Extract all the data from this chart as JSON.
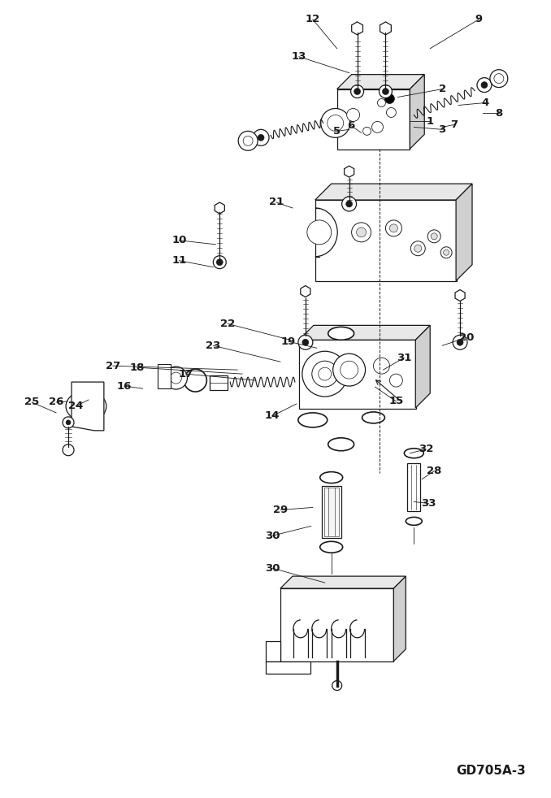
{
  "bg_color": "#ffffff",
  "line_color": "#1a1a1a",
  "text_color": "#1a1a1a",
  "watermark": "GD705A-3",
  "fig_width": 6.78,
  "fig_height": 9.82,
  "dpi": 100,
  "lw": 0.9,
  "label_fontsize": 9.5
}
